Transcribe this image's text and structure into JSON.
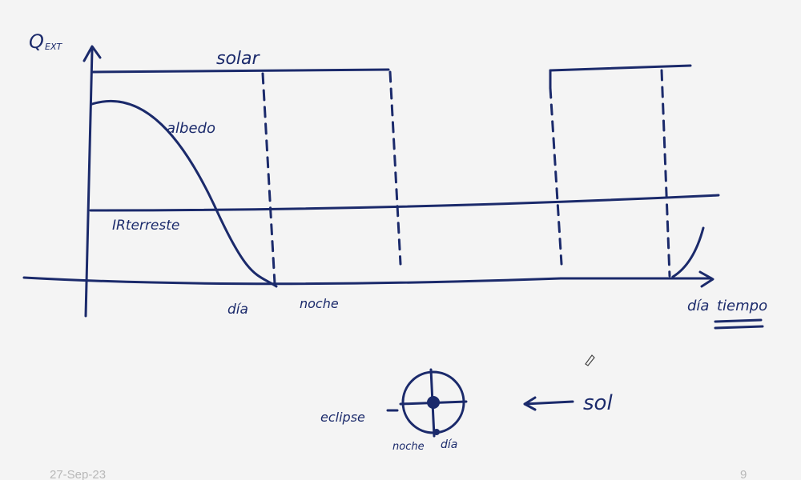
{
  "axis": {
    "y_label": "Q",
    "y_label_sub": "EXT",
    "x_label": "tiempo"
  },
  "curves": {
    "solar": "solar",
    "albedo": "albedo",
    "ir": "IRterreste"
  },
  "x_marks": [
    "día",
    "noche",
    "día"
  ],
  "orbit": {
    "left": "eclipse",
    "bottom_left": "noche",
    "bottom_right": "día",
    "sun": "sol"
  },
  "footer": {
    "date": "27-Sep-23",
    "page": "9"
  }
}
